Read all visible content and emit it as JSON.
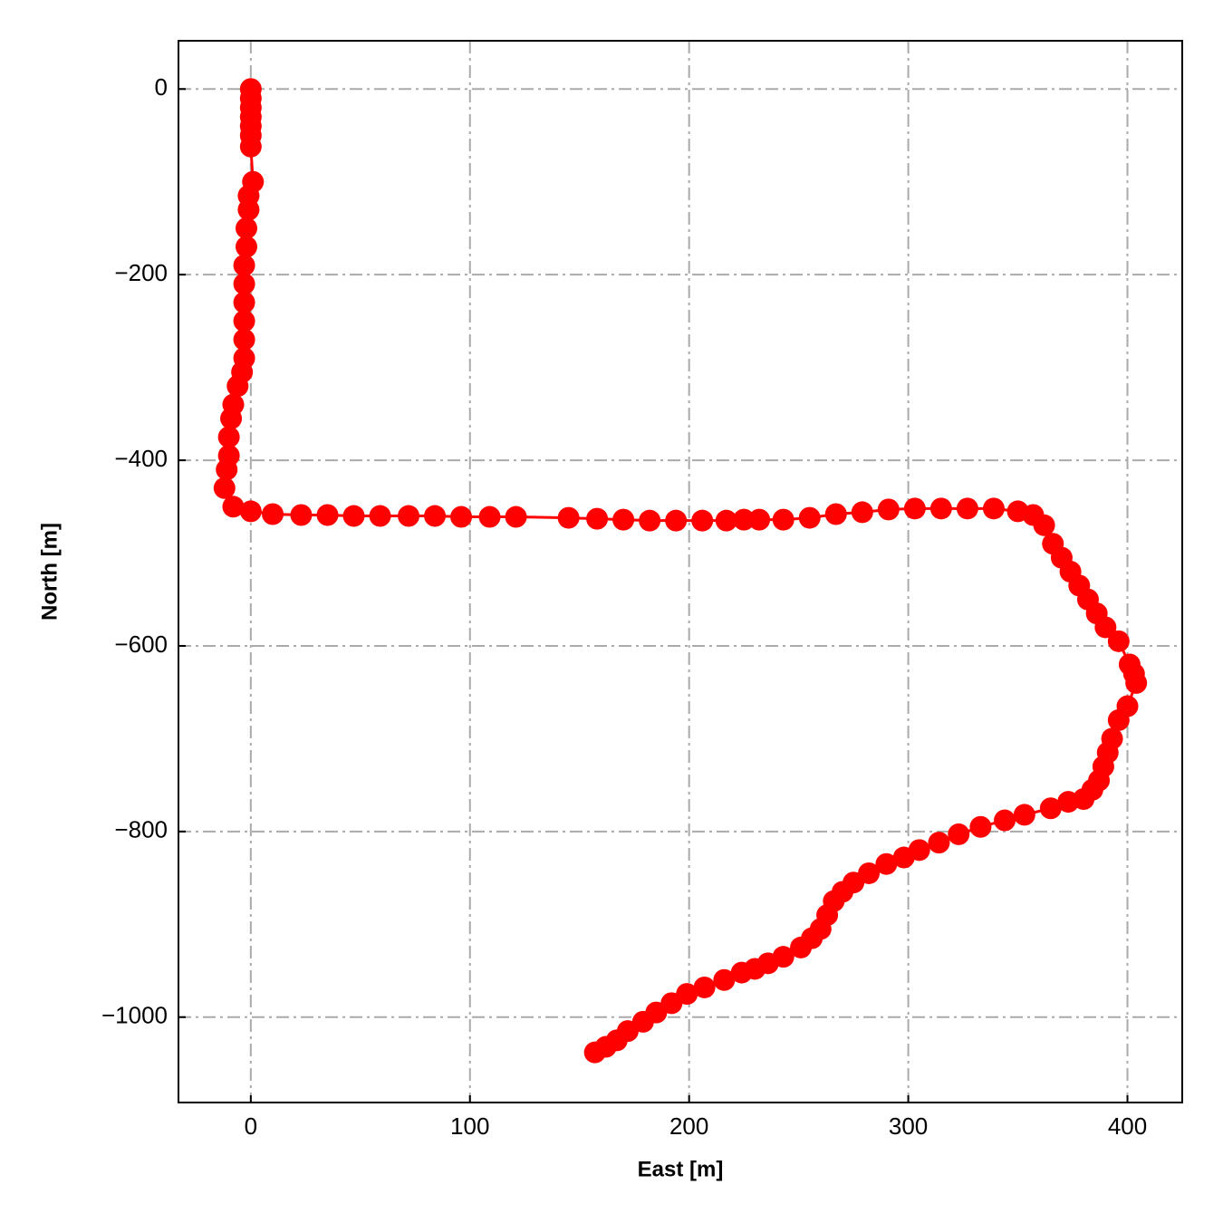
{
  "chart_data": {
    "type": "line",
    "xlabel": "East [m]",
    "ylabel": "North [m]",
    "x": [
      0,
      0,
      0,
      0,
      0,
      0,
      0,
      1,
      -1,
      -1,
      -2,
      -2,
      -3,
      -3,
      -3,
      -3,
      -3,
      -3,
      -4,
      -6,
      -8,
      -9,
      -10,
      -10,
      -11,
      -12,
      -8,
      0,
      10,
      23,
      35,
      47,
      59,
      72,
      84,
      96,
      109,
      121,
      145,
      158,
      170,
      182,
      194,
      206,
      217,
      225,
      232,
      243,
      255,
      267,
      279,
      291,
      303,
      315,
      327,
      339,
      350,
      357,
      362,
      366,
      370,
      374,
      378,
      382,
      386,
      390,
      396,
      401,
      403,
      404,
      400,
      396,
      393,
      391,
      389,
      387,
      384,
      380,
      373,
      365,
      353,
      344,
      333,
      323,
      314,
      305,
      298,
      290,
      282,
      275,
      270,
      266,
      263,
      260,
      256,
      251,
      243,
      236,
      230,
      224,
      216,
      207,
      199,
      192,
      185,
      179,
      172,
      167,
      162,
      157
    ],
    "series": [
      {
        "color": "#ff0000",
        "values": [
          0,
          -10,
          -20,
          -30,
          -40,
          -50,
          -62,
          -100,
          -115,
          -130,
          -150,
          -170,
          -190,
          -210,
          -230,
          -250,
          -270,
          -290,
          -305,
          -320,
          -340,
          -355,
          -375,
          -395,
          -410,
          -430,
          -450,
          -455,
          -458,
          -459,
          -459,
          -460,
          -460,
          -460,
          -460,
          -461,
          -461,
          -461,
          -462,
          -463,
          -464,
          -465,
          -465,
          -465,
          -465,
          -464,
          -464,
          -464,
          -462,
          -458,
          -456,
          -453,
          -452,
          -452,
          -452,
          -452,
          -455,
          -459,
          -470,
          -490,
          -505,
          -520,
          -535,
          -550,
          -565,
          -580,
          -595,
          -620,
          -630,
          -640,
          -665,
          -680,
          -700,
          -715,
          -730,
          -745,
          -755,
          -765,
          -768,
          -775,
          -782,
          -788,
          -795,
          -803,
          -812,
          -820,
          -828,
          -835,
          -845,
          -855,
          -865,
          -875,
          -890,
          -905,
          -915,
          -925,
          -935,
          -942,
          -948,
          -952,
          -960,
          -968,
          -975,
          -985,
          -995,
          -1005,
          -1015,
          -1025,
          -1032,
          -1038
        ]
      }
    ],
    "xlim": [
      -33,
      425
    ],
    "ylim": [
      -1092,
      52
    ],
    "xticks": [
      0,
      100,
      200,
      300,
      400
    ],
    "yticks": [
      0,
      {
        "value": -200,
        "label": "−200"
      },
      {
        "value": -400,
        "label": "−400"
      },
      {
        "value": -600,
        "label": "−600"
      },
      {
        "value": -800,
        "label": "−800"
      },
      {
        "value": -1000,
        "label": "−1000"
      }
    ],
    "grid": true
  }
}
